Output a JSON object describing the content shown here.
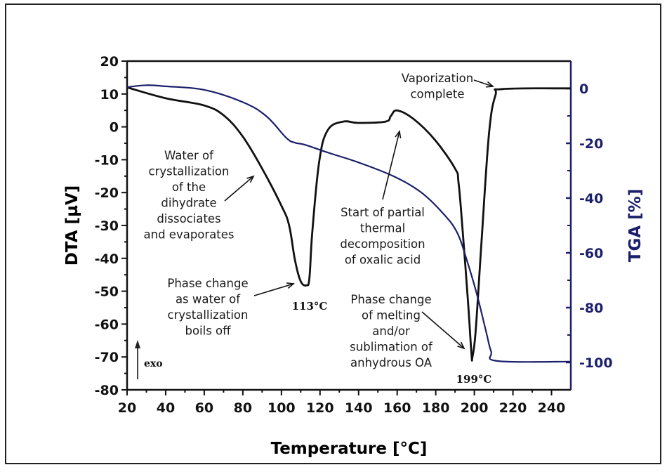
{
  "chart_data": {
    "type": "line",
    "title": "",
    "xlabel": "Temperature [°C]",
    "ylabel": "DTA [µV]",
    "y2label": "TGA [%]",
    "xlim": [
      20,
      250
    ],
    "ylim": [
      -80,
      20
    ],
    "y2lim": [
      -110,
      10
    ],
    "xticks": [
      20,
      40,
      60,
      80,
      100,
      120,
      140,
      160,
      180,
      200,
      220,
      240
    ],
    "yticks": [
      20,
      10,
      0,
      -10,
      -20,
      -30,
      -40,
      -50,
      -60,
      -70,
      -80
    ],
    "y2ticks": [
      0,
      -20,
      -40,
      -60,
      -80,
      -100
    ],
    "grid": false,
    "colors": {
      "dta": "#111111",
      "tga": "#1b1f6b",
      "axis": "#111111",
      "y2axis": "#1b1f6b"
    },
    "series": [
      {
        "name": "DTA",
        "axis": "left",
        "x": [
          20,
          40,
          60,
          70.5,
          80,
          90,
          100,
          104,
          107,
          110,
          113,
          114.5,
          116,
          119.6,
          124,
          132,
          140,
          154,
          156.7,
          160,
          168.7,
          179.6,
          190,
          191.8,
          194,
          196.7,
          198.5,
          199,
          200.7,
          203.6,
          207.6,
          211,
          214.5,
          250
        ],
        "y": [
          12,
          8.7,
          6.5,
          3.3,
          -3,
          -12.7,
          -24,
          -30,
          -40.5,
          -47,
          -48.2,
          -46,
          -32,
          -10.5,
          -1,
          1.6,
          1.2,
          1.6,
          3.3,
          5,
          2.3,
          -4,
          -12.7,
          -17,
          -32,
          -53,
          -69,
          -70,
          -62,
          -36,
          -2,
          9.7,
          11.5,
          11.7
        ]
      },
      {
        "name": "TGA",
        "axis": "right",
        "x": [
          20,
          30,
          40,
          60,
          80,
          92,
          102.5,
          107,
          112,
          125,
          140,
          158,
          172,
          183,
          191,
          196.7,
          201.5,
          206,
          208.7,
          212,
          250
        ],
        "y": [
          0.5,
          1.2,
          0.8,
          -0.5,
          -5,
          -10,
          -18,
          -19.8,
          -20.5,
          -23.6,
          -27,
          -32,
          -37.7,
          -45,
          -52.5,
          -64,
          -75.6,
          -88.5,
          -96,
          -99.5,
          -99.7
        ]
      }
    ],
    "annotations": [
      {
        "id": "water",
        "lines": [
          "Water of",
          "crystallization",
          "of the",
          "dihydrate",
          "dissociates",
          "and evaporates"
        ]
      },
      {
        "id": "phase1",
        "lines": [
          "Phase change",
          "as water of",
          "crystallization",
          "boils off"
        ]
      },
      {
        "id": "start",
        "lines": [
          "Start of partial",
          "thermal",
          "decomposition",
          "of oxalic acid"
        ]
      },
      {
        "id": "phase2",
        "lines": [
          "Phase change",
          "of melting",
          "and/or",
          "sublimation of",
          "anhydrous OA"
        ]
      },
      {
        "id": "vapor",
        "lines": [
          "Vaporization",
          "complete"
        ]
      }
    ],
    "peak_labels": [
      {
        "text": "113°C",
        "x": 113
      },
      {
        "text": "199°C",
        "x": 199
      }
    ],
    "exo_label": "exo"
  }
}
